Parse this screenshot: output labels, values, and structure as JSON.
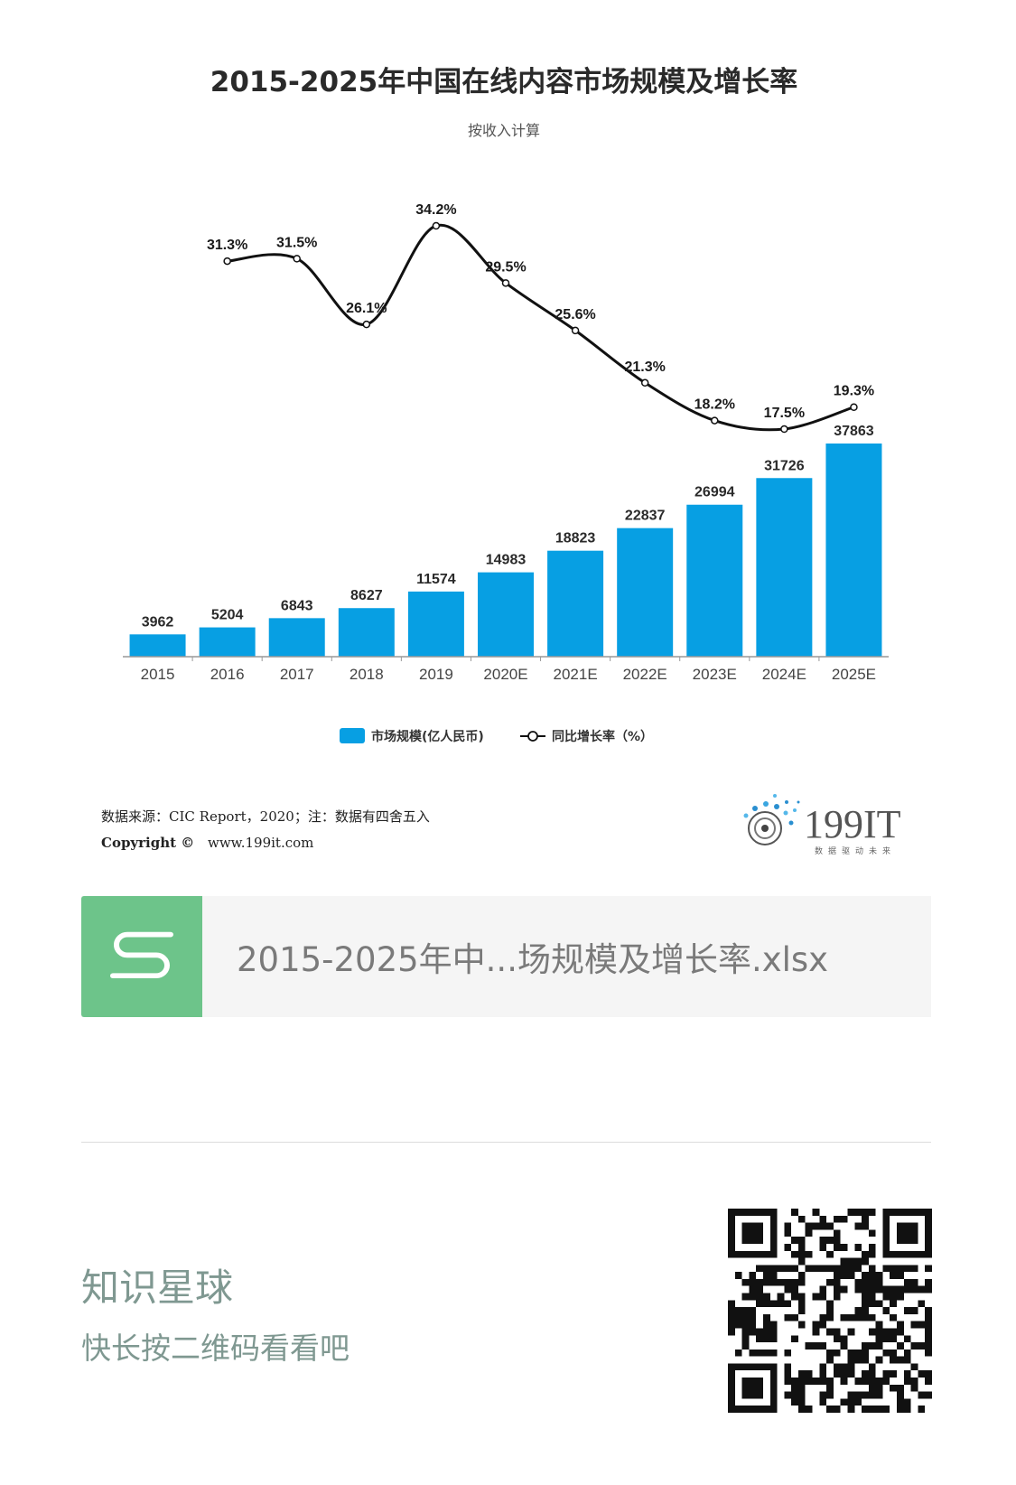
{
  "chart_data": {
    "type": "bar+line",
    "title": "2015-2025年中国在线内容市场规模及增长率",
    "subtitle": "按收入计算",
    "categories": [
      "2015",
      "2016",
      "2017",
      "2018",
      "2019",
      "2020E",
      "2021E",
      "2022E",
      "2023E",
      "2024E",
      "2025E"
    ],
    "series": [
      {
        "name": "市场规模(亿人民币)",
        "type": "bar",
        "color": "#079fe3",
        "values": [
          3962,
          5204,
          6843,
          8627,
          11574,
          14983,
          18823,
          22837,
          26994,
          31726,
          37863
        ]
      },
      {
        "name": "同比增长率（%）",
        "type": "line",
        "color": "#111111",
        "values": [
          null,
          31.3,
          31.5,
          26.1,
          34.2,
          29.5,
          25.6,
          21.3,
          18.2,
          17.5,
          19.3
        ],
        "labels": [
          "",
          "31.3%",
          "31.5%",
          "26.1%",
          "34.2%",
          "29.5%",
          "25.6%",
          "21.3%",
          "18.2%",
          "17.5%",
          "19.3%"
        ]
      }
    ],
    "legend_position": "bottom-center",
    "grid": false
  },
  "source": {
    "line1": "数据来源：CIC Report，2020；注：数据有四舍五入",
    "copyright": "Copyright ©",
    "url": "www.199it.com"
  },
  "logo": {
    "text": "199IT",
    "tagline": "数据驱动未来"
  },
  "file_card": {
    "icon_letter": "S",
    "file_name": "2015-2025年中...场规模及增长率.xlsx"
  },
  "footer": {
    "title": "知识星球",
    "subtitle": "快长按二维码看看吧"
  }
}
